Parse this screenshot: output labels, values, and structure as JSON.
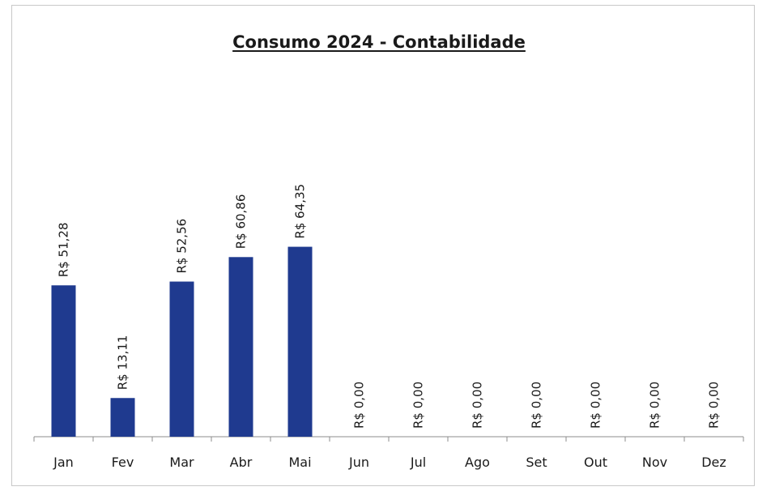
{
  "chart_data": {
    "type": "bar",
    "title": "Consumo 2024 - Contabilidade",
    "xlabel": "",
    "ylabel": "",
    "categories": [
      "Jan",
      "Fev",
      "Mar",
      "Abr",
      "Mai",
      "Jun",
      "Jul",
      "Ago",
      "Set",
      "Out",
      "Nov",
      "Dez"
    ],
    "values": [
      51.28,
      13.11,
      52.56,
      60.86,
      64.35,
      0,
      0,
      0,
      0,
      0,
      0,
      0
    ],
    "data_labels": [
      "R$ 51,28",
      "R$ 13,11",
      "R$ 52,56",
      "R$ 60,86",
      "R$ 64,35",
      "R$ 0,00",
      "R$ 0,00",
      "R$ 0,00",
      "R$ 0,00",
      "R$ 0,00",
      "R$ 0,00",
      "R$ 0,00"
    ],
    "ylim": [
      0,
      70
    ],
    "bar_color": "#1f3a8f",
    "grid": false,
    "legend": "none"
  }
}
